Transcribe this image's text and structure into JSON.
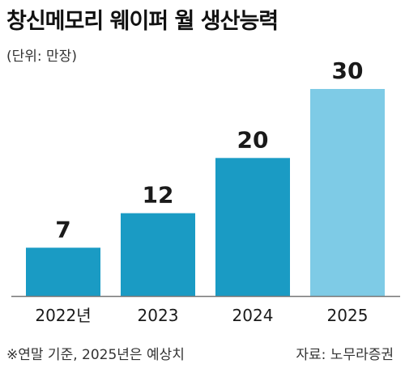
{
  "header": {
    "title": "창신메모리 웨이퍼 월 생산능력",
    "unit": "(단위: 만장)"
  },
  "footer": {
    "note": "※연말 기준, 2025년은 예상치",
    "source": "자료: 노무라증권"
  },
  "colors": {
    "bar_actual": "#1a9bc4",
    "bar_forecast": "#7ecbe6",
    "axis": "#777777",
    "text": "#1a1a1a"
  },
  "chart_data": {
    "type": "bar",
    "categories": [
      "2022년",
      "2023",
      "2024",
      "2025"
    ],
    "values": [
      7,
      12,
      20,
      30
    ],
    "data_labels": [
      "7",
      "12",
      "20",
      "30"
    ],
    "forecast": [
      false,
      false,
      false,
      true
    ],
    "title": "창신메모리 웨이퍼 월 생산능력",
    "ylabel": "",
    "xlabel": "",
    "ylim": [
      0,
      30
    ],
    "grid": false,
    "legend": "none"
  }
}
